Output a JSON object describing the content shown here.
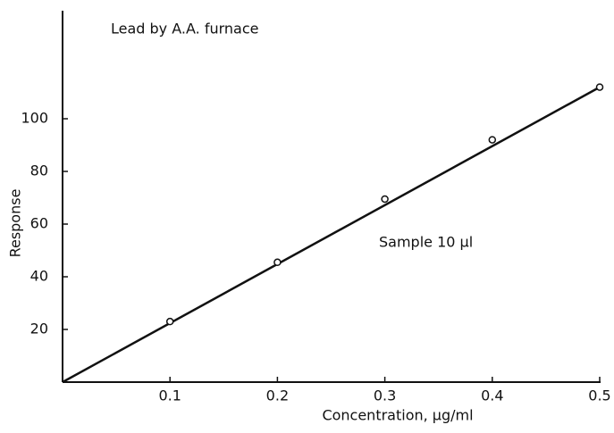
{
  "chart_data": {
    "type": "scatter",
    "annotations": [
      "Lead by A.A. furnace",
      "Sample  10 µl"
    ],
    "xlabel": "Concentration, µg/ml",
    "ylabel": "Response",
    "x": [
      0.1,
      0.2,
      0.3,
      0.4,
      0.5
    ],
    "values": [
      23,
      45.5,
      69.5,
      92,
      112
    ],
    "fit_line": {
      "x": [
        0,
        0.5
      ],
      "values": [
        0,
        112
      ]
    },
    "color": "#111111",
    "xlim": [
      0,
      0.5
    ],
    "ylim": [
      0,
      140
    ],
    "xticks": [
      0.1,
      0.2,
      0.3,
      0.4,
      0.5
    ],
    "yticks": [
      20,
      40,
      60,
      80,
      100
    ]
  }
}
